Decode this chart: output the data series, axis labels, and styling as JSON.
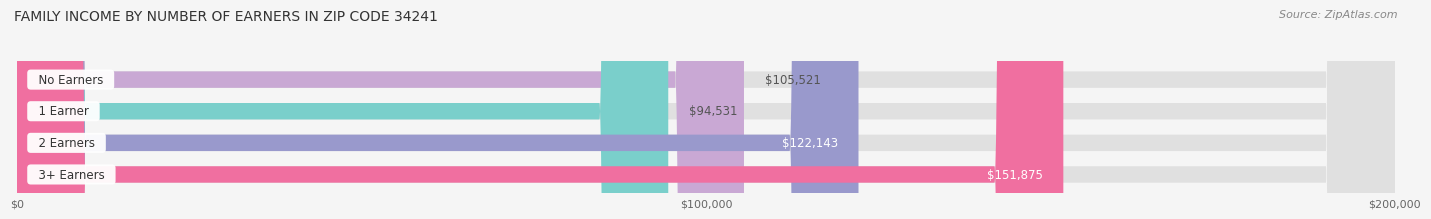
{
  "title": "FAMILY INCOME BY NUMBER OF EARNERS IN ZIP CODE 34241",
  "source": "Source: ZipAtlas.com",
  "categories": [
    "No Earners",
    "1 Earner",
    "2 Earners",
    "3+ Earners"
  ],
  "values": [
    105521,
    94531,
    122143,
    151875
  ],
  "labels": [
    "$105,521",
    "$94,531",
    "$122,143",
    "$151,875"
  ],
  "bar_colors": [
    "#c9a8d4",
    "#7acfcb",
    "#9999cc",
    "#f06fa0"
  ],
  "bar_bg_color": "#e0e0e0",
  "background_color": "#f5f5f5",
  "label_colors": [
    "#555555",
    "#555555",
    "#ffffff",
    "#ffffff"
  ],
  "xmax": 200000,
  "xticks": [
    0,
    100000,
    200000
  ],
  "xtick_labels": [
    "$0",
    "$100,000",
    "$200,000"
  ],
  "title_fontsize": 10,
  "source_fontsize": 8,
  "bar_label_fontsize": 8.5,
  "category_fontsize": 8.5
}
